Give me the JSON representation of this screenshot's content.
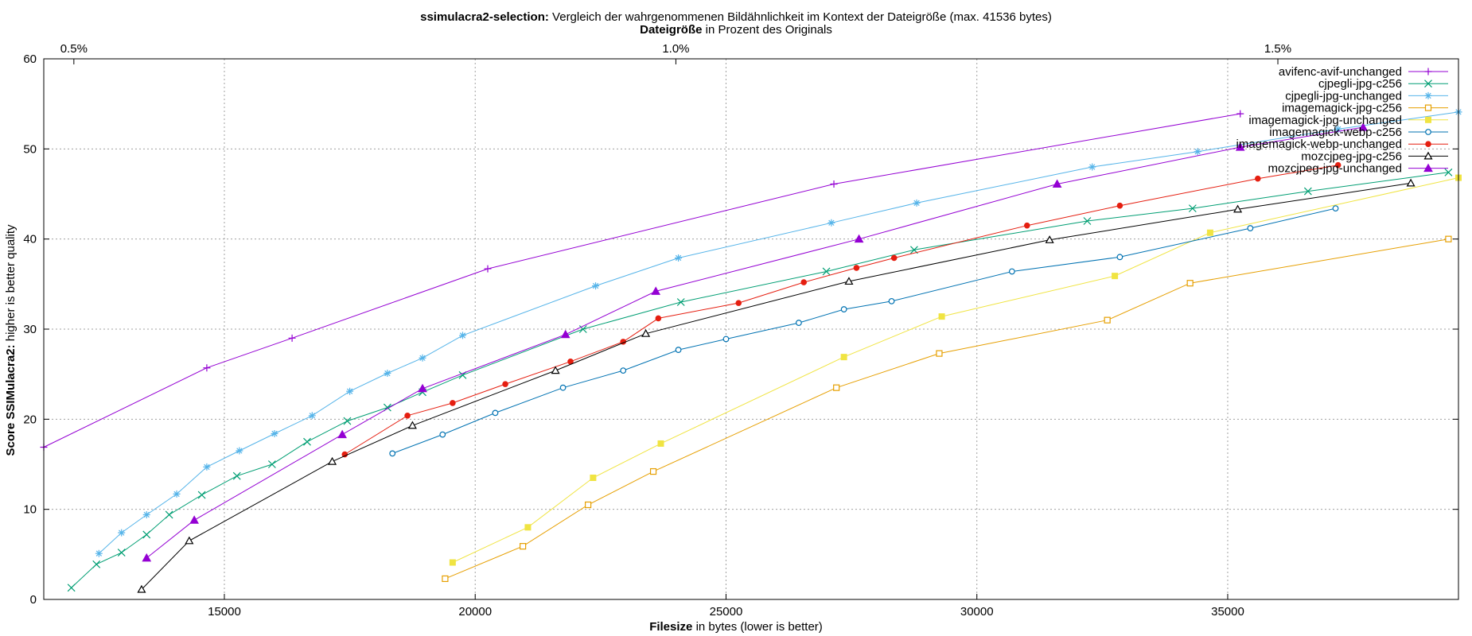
{
  "chart_data": {
    "type": "line",
    "title_bold": "ssimulacra2-selection:",
    "title_rest": "Vergleich der wahrgenommenen Bildähnlichkeit im Kontext der Dateigröße (max. 41536 bytes)",
    "x2label_bold": "Dateigröße",
    "x2label_rest": "in Prozent des Originals",
    "xlabel_bold": "Filesize",
    "xlabel_rest": "in bytes (lower is better)",
    "ylabel_bold": "Score SSIMulacra2:",
    "ylabel_rest": "higher is better quality",
    "xlim": [
      11400,
      39600
    ],
    "ylim": [
      0,
      60
    ],
    "x_ticks": [
      15000,
      20000,
      25000,
      30000,
      35000
    ],
    "y_ticks": [
      0,
      10,
      20,
      30,
      40,
      50,
      60
    ],
    "x2_ticks": [
      {
        "label": "0.5%",
        "x": 12000
      },
      {
        "label": "1.0%",
        "x": 24000
      },
      {
        "label": "1.5%",
        "x": 36000
      }
    ],
    "grid": true,
    "legend_position": "top-right",
    "series": [
      {
        "name": "avifenc-avif-unchanged",
        "color": "#9400d3",
        "marker": "plus",
        "points": [
          [
            11400,
            16.9
          ],
          [
            14650,
            25.7
          ],
          [
            16350,
            29.0
          ],
          [
            20250,
            36.7
          ],
          [
            27150,
            46.1
          ],
          [
            35250,
            53.9
          ]
        ]
      },
      {
        "name": "cjpegli-jpg-c256",
        "color": "#009e73",
        "marker": "cross",
        "points": [
          [
            11950,
            1.3
          ],
          [
            12450,
            3.9
          ],
          [
            12950,
            5.2
          ],
          [
            13450,
            7.2
          ],
          [
            13900,
            9.4
          ],
          [
            14550,
            11.6
          ],
          [
            15250,
            13.7
          ],
          [
            15950,
            15.0
          ],
          [
            16650,
            17.5
          ],
          [
            17450,
            19.8
          ],
          [
            18250,
            21.3
          ],
          [
            18950,
            23.0
          ],
          [
            19750,
            24.9
          ],
          [
            22150,
            30.0
          ],
          [
            24100,
            33.0
          ],
          [
            27000,
            36.4
          ],
          [
            28750,
            38.8
          ],
          [
            32200,
            42.0
          ],
          [
            34300,
            43.4
          ],
          [
            36600,
            45.3
          ],
          [
            39400,
            47.4
          ]
        ]
      },
      {
        "name": "cjpegli-jpg-unchanged",
        "color": "#56b4e9",
        "marker": "star",
        "points": [
          [
            12500,
            5.1
          ],
          [
            12950,
            7.4
          ],
          [
            13450,
            9.4
          ],
          [
            14050,
            11.7
          ],
          [
            14650,
            14.7
          ],
          [
            15300,
            16.5
          ],
          [
            16000,
            18.4
          ],
          [
            16750,
            20.4
          ],
          [
            17500,
            23.1
          ],
          [
            18250,
            25.1
          ],
          [
            18950,
            26.8
          ],
          [
            19750,
            29.3
          ],
          [
            22400,
            34.8
          ],
          [
            24050,
            37.9
          ],
          [
            27100,
            41.8
          ],
          [
            28800,
            44.0
          ],
          [
            32300,
            48.0
          ],
          [
            34400,
            49.7
          ],
          [
            37200,
            52.2
          ],
          [
            39600,
            54.1
          ]
        ]
      },
      {
        "name": "imagemagick-jpg-c256",
        "color": "#e69f00",
        "marker": "square",
        "points": [
          [
            19400,
            2.3
          ],
          [
            20950,
            5.9
          ],
          [
            22250,
            10.5
          ],
          [
            23550,
            14.2
          ],
          [
            27200,
            23.5
          ],
          [
            29250,
            27.3
          ],
          [
            32600,
            31.0
          ],
          [
            34250,
            35.1
          ],
          [
            39400,
            40.0
          ]
        ]
      },
      {
        "name": "imagemagick-jpg-unchanged",
        "color": "#f0e442",
        "marker": "filled-square",
        "points": [
          [
            19550,
            4.1
          ],
          [
            21050,
            8.0
          ],
          [
            22350,
            13.5
          ],
          [
            23700,
            17.3
          ],
          [
            27350,
            26.9
          ],
          [
            29300,
            31.4
          ],
          [
            32750,
            35.9
          ],
          [
            34650,
            40.7
          ],
          [
            39600,
            46.8
          ]
        ]
      },
      {
        "name": "imagemagick-webp-c256",
        "color": "#0072b2",
        "marker": "circle",
        "points": [
          [
            18350,
            16.2
          ],
          [
            19350,
            18.3
          ],
          [
            20400,
            20.7
          ],
          [
            21750,
            23.5
          ],
          [
            22950,
            25.4
          ],
          [
            24050,
            27.7
          ],
          [
            25000,
            28.9
          ],
          [
            26450,
            30.7
          ],
          [
            27350,
            32.2
          ],
          [
            28300,
            33.1
          ],
          [
            30700,
            36.4
          ],
          [
            32850,
            38.0
          ],
          [
            35450,
            41.2
          ],
          [
            37150,
            43.4
          ]
        ]
      },
      {
        "name": "imagemagick-webp-unchanged",
        "color": "#e51e10",
        "marker": "filled-circle",
        "points": [
          [
            17400,
            16.1
          ],
          [
            18650,
            20.4
          ],
          [
            19550,
            21.8
          ],
          [
            20600,
            23.9
          ],
          [
            21900,
            26.4
          ],
          [
            22950,
            28.6
          ],
          [
            23650,
            31.2
          ],
          [
            25250,
            32.9
          ],
          [
            26550,
            35.2
          ],
          [
            27600,
            36.8
          ],
          [
            28350,
            37.9
          ],
          [
            31000,
            41.5
          ],
          [
            32850,
            43.7
          ],
          [
            35600,
            46.7
          ],
          [
            37200,
            48.2
          ]
        ]
      },
      {
        "name": "mozcjpeg-jpg-c256",
        "color": "#000000",
        "marker": "triangle",
        "points": [
          [
            13350,
            1.1
          ],
          [
            14300,
            6.5
          ],
          [
            17150,
            15.3
          ],
          [
            18750,
            19.3
          ],
          [
            21600,
            25.4
          ],
          [
            23400,
            29.5
          ],
          [
            27450,
            35.3
          ],
          [
            31450,
            39.9
          ],
          [
            35200,
            43.3
          ],
          [
            38650,
            46.2
          ]
        ]
      },
      {
        "name": "mozcjpeg-jpg-unchanged",
        "color": "#9400d3",
        "marker": "filled-triangle",
        "points": [
          [
            13450,
            4.6
          ],
          [
            14400,
            8.8
          ],
          [
            17350,
            18.3
          ],
          [
            18950,
            23.4
          ],
          [
            21800,
            29.4
          ],
          [
            23600,
            34.2
          ],
          [
            27650,
            40.0
          ],
          [
            31600,
            46.1
          ],
          [
            35250,
            50.2
          ],
          [
            37700,
            52.4
          ]
        ]
      }
    ]
  }
}
